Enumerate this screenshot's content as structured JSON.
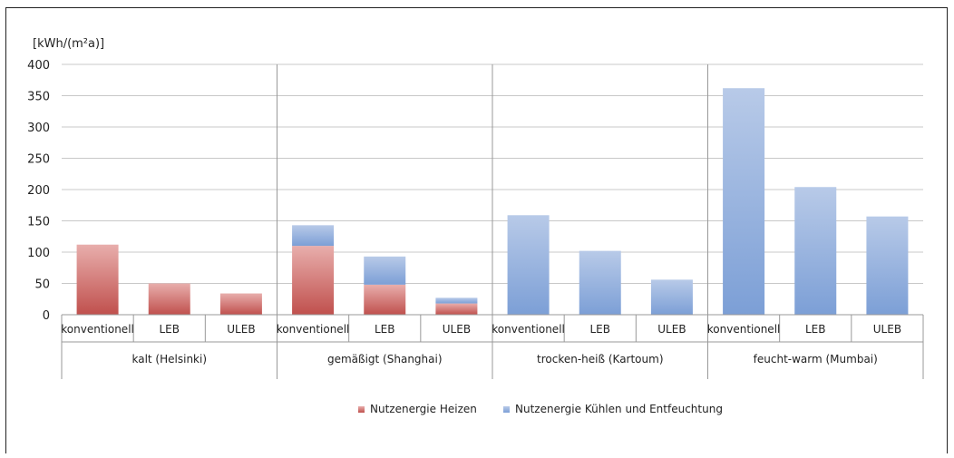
{
  "chart_data": {
    "type": "bar",
    "stacked": true,
    "ylabel": "[kWh/(m²a)]",
    "ylim": [
      0,
      400
    ],
    "yticks": [
      0,
      50,
      100,
      150,
      200,
      250,
      300,
      350,
      400
    ],
    "grid": true,
    "legend_position": "bottom",
    "groups": [
      {
        "label": "kalt (Helsinki)",
        "categories": [
          "konventionell",
          "LEB",
          "ULEB"
        ]
      },
      {
        "label": "gemäßigt (Shanghai)",
        "categories": [
          "konventionell",
          "LEB",
          "ULEB"
        ]
      },
      {
        "label": "trocken-heiß (Kartoum)",
        "categories": [
          "konventionell",
          "LEB",
          "ULEB"
        ]
      },
      {
        "label": "feucht-warm (Mumbai)",
        "categories": [
          "konventionell",
          "LEB",
          "ULEB"
        ]
      }
    ],
    "series": [
      {
        "name": "Nutzenergie Heizen",
        "color": "#c0504d",
        "values": [
          112,
          50,
          34,
          110,
          48,
          18,
          0,
          0,
          0,
          0,
          0,
          0
        ]
      },
      {
        "name": "Nutzenergie Kühlen und Entfeuchtung",
        "color": "#7c9fd6",
        "values": [
          0,
          0,
          0,
          33,
          45,
          9,
          159,
          102,
          56,
          362,
          204,
          157
        ]
      }
    ]
  }
}
